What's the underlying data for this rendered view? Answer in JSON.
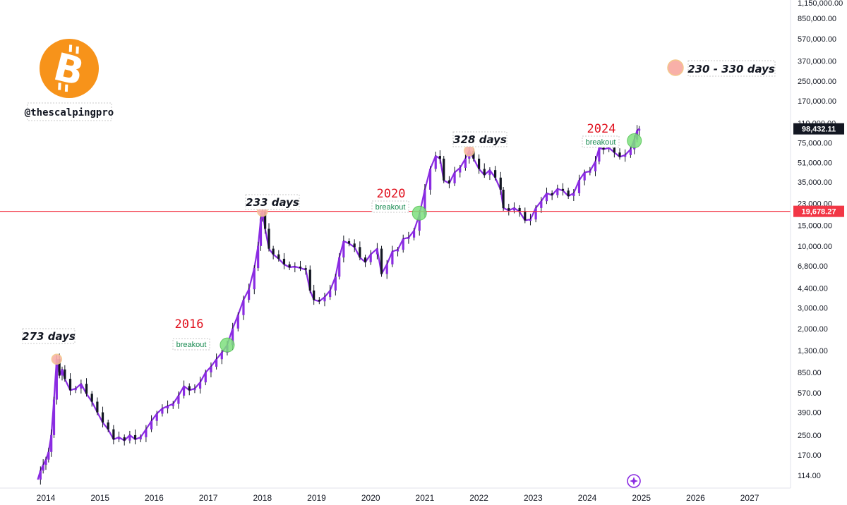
{
  "chart_data": {
    "type": "candlestick-line",
    "scale": "log",
    "x_axis": {
      "ticks": [
        "2014",
        "2015",
        "2016",
        "2017",
        "2018",
        "2019",
        "2020",
        "2021",
        "2022",
        "2023",
        "2024",
        "2025",
        "2026",
        "2027"
      ],
      "range": [
        2013.85,
        2027.6
      ]
    },
    "y_axis": {
      "ticks": [
        "1,150,000.00",
        "850,000.00",
        "570,000.00",
        "370,000.00",
        "250,000.00",
        "170,000.00",
        "110,000.00",
        "75,000.00",
        "51,000.00",
        "35,000.00",
        "23,000.00",
        "15,000.00",
        "10,000.00",
        "6,800.00",
        "4,400.00",
        "3,000.00",
        "2,000.00",
        "1,300.00",
        "850.00",
        "570.00",
        "390.00",
        "250.00",
        "170.00",
        "114.00"
      ],
      "tick_values": [
        1150000,
        850000,
        570000,
        370000,
        250000,
        170000,
        110000,
        75000,
        51000,
        35000,
        23000,
        15000,
        10000,
        6800,
        4400,
        3000,
        2000,
        1300,
        850,
        570,
        390,
        250,
        170,
        114
      ],
      "range": [
        105,
        1200000
      ]
    },
    "series": [
      {
        "color": "#8a2be2",
        "points": [
          [
            2013.85,
            105
          ],
          [
            2013.9,
            125
          ],
          [
            2013.95,
            140
          ],
          [
            2014.0,
            155
          ],
          [
            2014.05,
            180
          ],
          [
            2014.1,
            250
          ],
          [
            2014.15,
            500
          ],
          [
            2014.2,
            1100
          ],
          [
            2014.25,
            800
          ],
          [
            2014.3,
            900
          ],
          [
            2014.35,
            750
          ],
          [
            2014.45,
            600
          ],
          [
            2014.55,
            620
          ],
          [
            2014.65,
            680
          ],
          [
            2014.75,
            560
          ],
          [
            2014.85,
            480
          ],
          [
            2014.95,
            390
          ],
          [
            2015.05,
            320
          ],
          [
            2015.15,
            280
          ],
          [
            2015.25,
            230
          ],
          [
            2015.35,
            240
          ],
          [
            2015.45,
            225
          ],
          [
            2015.55,
            250
          ],
          [
            2015.65,
            230
          ],
          [
            2015.75,
            240
          ],
          [
            2015.85,
            280
          ],
          [
            2015.95,
            330
          ],
          [
            2016.05,
            380
          ],
          [
            2016.15,
            420
          ],
          [
            2016.25,
            440
          ],
          [
            2016.35,
            460
          ],
          [
            2016.45,
            540
          ],
          [
            2016.55,
            650
          ],
          [
            2016.65,
            600
          ],
          [
            2016.75,
            620
          ],
          [
            2016.85,
            700
          ],
          [
            2016.95,
            850
          ],
          [
            2017.05,
            950
          ],
          [
            2017.15,
            1100
          ],
          [
            2017.25,
            1250
          ],
          [
            2017.35,
            1450
          ],
          [
            2017.45,
            2000
          ],
          [
            2017.55,
            2600
          ],
          [
            2017.65,
            3500
          ],
          [
            2017.75,
            4300
          ],
          [
            2017.85,
            6500
          ],
          [
            2017.92,
            10000
          ],
          [
            2017.97,
            17000
          ],
          [
            2018.0,
            19700
          ],
          [
            2018.05,
            14000
          ],
          [
            2018.12,
            9500
          ],
          [
            2018.2,
            8500
          ],
          [
            2018.3,
            7800
          ],
          [
            2018.4,
            7000
          ],
          [
            2018.5,
            6600
          ],
          [
            2018.6,
            6700
          ],
          [
            2018.7,
            6500
          ],
          [
            2018.8,
            6300
          ],
          [
            2018.88,
            4200
          ],
          [
            2018.95,
            3500
          ],
          [
            2019.05,
            3400
          ],
          [
            2019.15,
            3700
          ],
          [
            2019.25,
            4200
          ],
          [
            2019.35,
            5500
          ],
          [
            2019.42,
            8000
          ],
          [
            2019.5,
            11000
          ],
          [
            2019.6,
            10500
          ],
          [
            2019.7,
            9800
          ],
          [
            2019.8,
            8000
          ],
          [
            2019.9,
            7300
          ],
          [
            2020.0,
            8500
          ],
          [
            2020.12,
            9500
          ],
          [
            2020.2,
            5800
          ],
          [
            2020.3,
            7000
          ],
          [
            2020.4,
            9000
          ],
          [
            2020.5,
            9300
          ],
          [
            2020.6,
            11500
          ],
          [
            2020.7,
            11800
          ],
          [
            2020.8,
            13500
          ],
          [
            2020.9,
            18500
          ],
          [
            2021.0,
            30000
          ],
          [
            2021.1,
            45000
          ],
          [
            2021.2,
            58000
          ],
          [
            2021.28,
            55000
          ],
          [
            2021.35,
            36000
          ],
          [
            2021.45,
            34000
          ],
          [
            2021.55,
            42000
          ],
          [
            2021.65,
            46000
          ],
          [
            2021.75,
            55000
          ],
          [
            2021.82,
            64000
          ],
          [
            2021.9,
            55000
          ],
          [
            2022.0,
            45000
          ],
          [
            2022.1,
            40000
          ],
          [
            2022.2,
            44000
          ],
          [
            2022.3,
            38000
          ],
          [
            2022.4,
            30000
          ],
          [
            2022.45,
            21000
          ],
          [
            2022.55,
            20000
          ],
          [
            2022.65,
            21000
          ],
          [
            2022.75,
            19500
          ],
          [
            2022.85,
            16500
          ],
          [
            2022.95,
            16800
          ],
          [
            2023.05,
            21000
          ],
          [
            2023.15,
            24000
          ],
          [
            2023.25,
            28000
          ],
          [
            2023.35,
            27000
          ],
          [
            2023.45,
            30500
          ],
          [
            2023.55,
            29500
          ],
          [
            2023.65,
            26500
          ],
          [
            2023.75,
            28000
          ],
          [
            2023.85,
            36000
          ],
          [
            2023.95,
            42000
          ],
          [
            2024.05,
            43000
          ],
          [
            2024.15,
            52000
          ],
          [
            2024.22,
            68000
          ],
          [
            2024.3,
            66000
          ],
          [
            2024.4,
            68000
          ],
          [
            2024.5,
            62000
          ],
          [
            2024.6,
            57000
          ],
          [
            2024.7,
            59000
          ],
          [
            2024.8,
            66000
          ],
          [
            2024.87,
            80000
          ],
          [
            2024.92,
            95000
          ],
          [
            2024.96,
            98432
          ]
        ]
      }
    ],
    "horizontal_line": {
      "value": 19678.27,
      "label": "19,678.27",
      "color": "#f23645"
    },
    "current_price": {
      "value": 98432.11,
      "label": "98,432.11"
    },
    "annotations": {
      "days": [
        {
          "text": "273 days",
          "x": 2014.2,
          "y": 1100
        },
        {
          "text": "233 days",
          "x": 2018.0,
          "y": 19700
        },
        {
          "text": "328 days",
          "x": 2021.82,
          "y": 64000
        }
      ],
      "cycles": [
        {
          "year": "2016",
          "breakout": "breakout",
          "x": 2017.35,
          "y": 1450
        },
        {
          "year": "2020",
          "breakout": "breakout",
          "x": 2020.9,
          "y": 19000
        },
        {
          "year": "2024",
          "breakout": "breakout",
          "x": 2024.87,
          "y": 78000
        }
      ]
    },
    "legend": {
      "text": "230 - 330 days"
    },
    "handle": "@thescalpingpro",
    "logo": "bitcoin-logo",
    "colors": {
      "series": "#8a2be2",
      "support": "#f23645",
      "peak": "#f8b0a8",
      "breakout": "#7ee07e",
      "bitcoin": "#f7931a"
    }
  }
}
